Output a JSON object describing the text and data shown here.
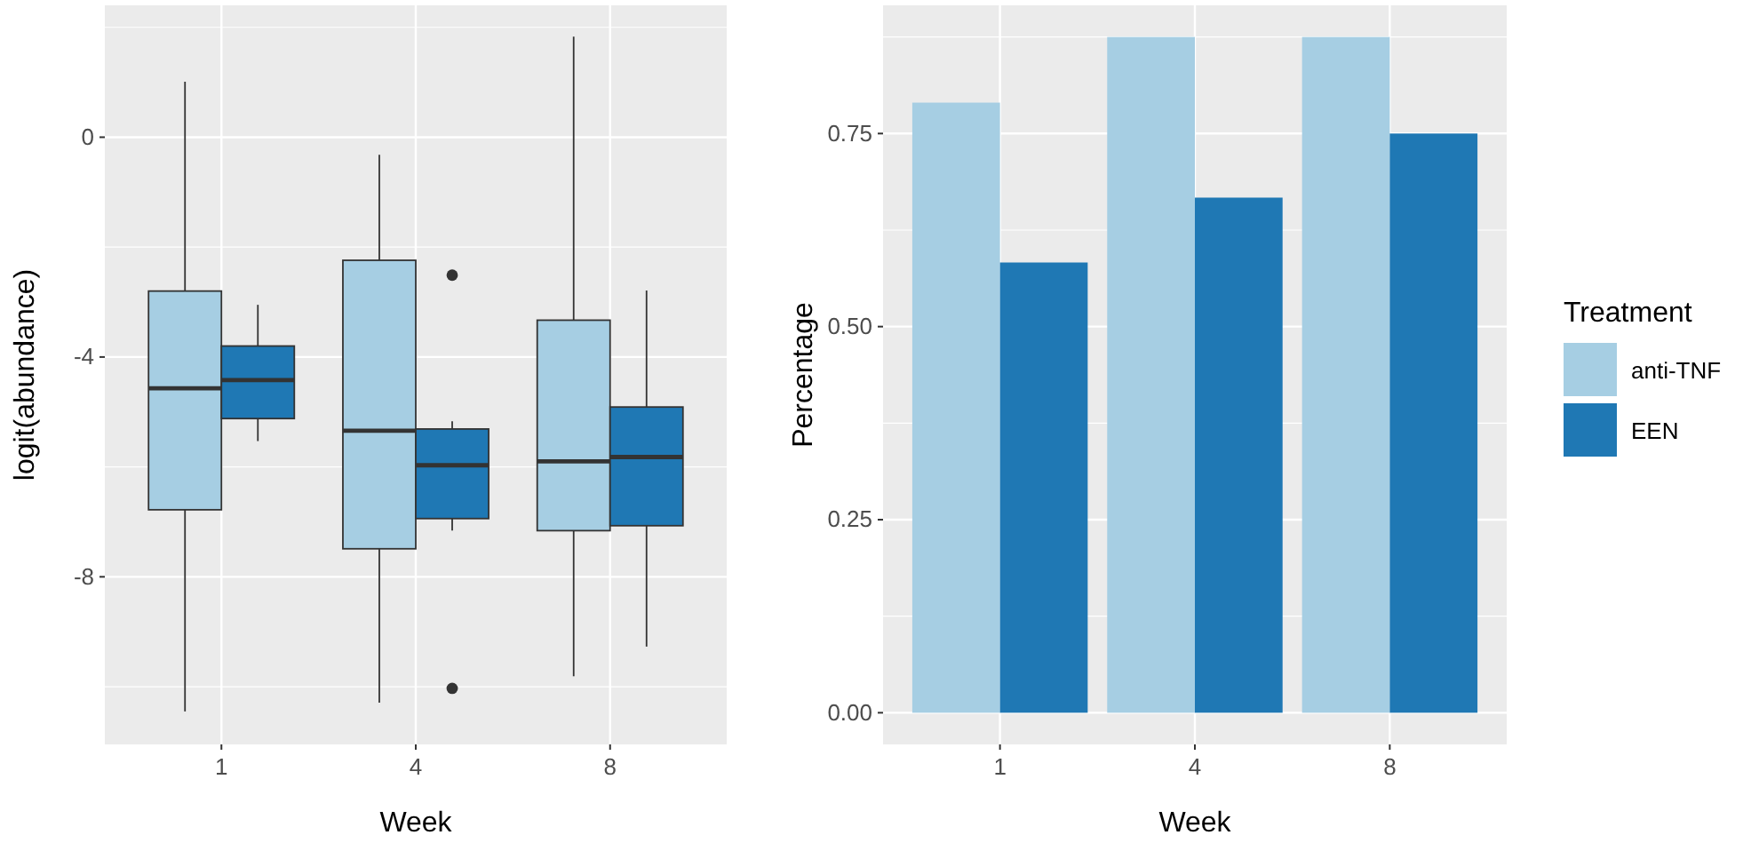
{
  "chart_data": [
    {
      "type": "box",
      "xlabel": "Week",
      "ylabel": "logit(abundance)",
      "categories": [
        "1",
        "4",
        "8"
      ],
      "ylim": [
        -11.05,
        2.4
      ],
      "yticks": [
        {
          "value": 0,
          "label": "0"
        },
        {
          "value": -4,
          "label": "-4"
        },
        {
          "value": -8,
          "label": "-8"
        }
      ],
      "grid": true,
      "legend": false,
      "series": [
        {
          "color": "#a6cee3",
          "boxes": [
            {
              "low": -10.45,
              "q1": -6.78,
              "median": -4.57,
              "q3": -2.8,
              "high": 1.01
            },
            {
              "low": -10.29,
              "q1": -7.49,
              "median": -5.34,
              "q3": -2.24,
              "high": -0.32
            },
            {
              "low": -9.81,
              "q1": -7.16,
              "median": -5.9,
              "q3": -3.33,
              "high": 1.83
            }
          ]
        },
        {
          "color": "#1f78b4",
          "boxes": [
            {
              "low": -5.53,
              "q1": -5.12,
              "median": -4.42,
              "q3": -3.8,
              "high": -3.05
            },
            {
              "low": -7.16,
              "q1": -6.94,
              "median": -5.97,
              "q3": -5.31,
              "high": -5.17,
              "outliers": [
                -2.51,
                -10.03
              ]
            },
            {
              "low": -9.27,
              "q1": -7.07,
              "median": -5.82,
              "q3": -4.91,
              "high": -2.79
            }
          ]
        }
      ]
    },
    {
      "type": "bar",
      "xlabel": "Week",
      "ylabel": "Percentage",
      "legend_title": "Treatment",
      "categories": [
        "1",
        "4",
        "8"
      ],
      "ylim": [
        -0.041,
        0.916
      ],
      "yticks": [
        {
          "value": 0,
          "label": "0.00"
        },
        {
          "value": 0.25,
          "label": "0.25"
        },
        {
          "value": 0.5,
          "label": "0.50"
        },
        {
          "value": 0.75,
          "label": "0.75"
        }
      ],
      "grid": true,
      "legend": "right",
      "series": [
        {
          "name": "anti-TNF",
          "color": "#a6cee3",
          "values": [
            0.79,
            0.875,
            0.875
          ]
        },
        {
          "name": "EEN",
          "color": "#1f78b4",
          "values": [
            0.583,
            0.667,
            0.75
          ]
        }
      ]
    }
  ]
}
